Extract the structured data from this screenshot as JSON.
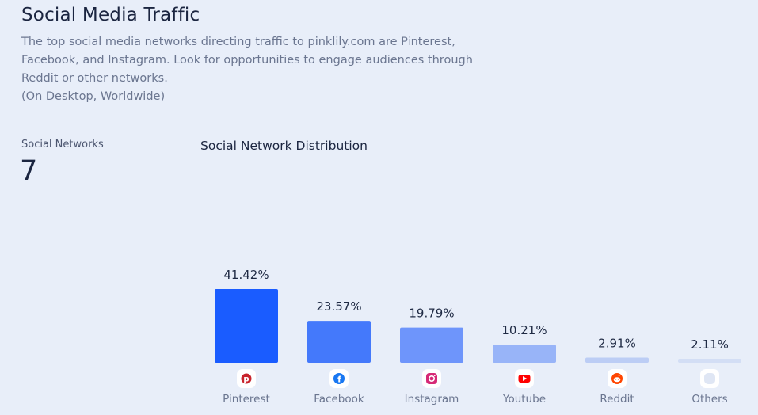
{
  "section": {
    "title": "Social Media Traffic",
    "description_lines": [
      "The top social media networks directing traffic to pinklily.com are Pinterest,",
      "Facebook, and Instagram. Look for opportunities to engage audiences through",
      "Reddit or other networks.",
      "(On Desktop, Worldwide)"
    ]
  },
  "stat": {
    "label": "Social Networks",
    "value": "7"
  },
  "chart_data": {
    "type": "bar",
    "title": "Social Network Distribution",
    "categories": [
      "Pinterest",
      "Facebook",
      "Instagram",
      "Youtube",
      "Reddit",
      "Others"
    ],
    "values": [
      41.42,
      23.57,
      19.79,
      10.21,
      2.91,
      2.11
    ],
    "value_labels": [
      "41.42%",
      "23.57%",
      "19.79%",
      "10.21%",
      "2.91%",
      "2.11%"
    ],
    "unit": "%",
    "ylim": [
      0,
      41.42
    ],
    "grid": false,
    "legend": "none",
    "bar_colors": [
      "#1a5cff",
      "#4479fb",
      "#6e95fb",
      "#98b4f8",
      "#bccdf5",
      "#d3def5"
    ],
    "icons": [
      "pinterest-icon",
      "facebook-icon",
      "instagram-icon",
      "youtube-icon",
      "reddit-icon",
      "others-icon"
    ],
    "icon_colors": [
      "#c8232c",
      "#1877f2",
      "#d62976",
      "#ff0000",
      "#ff4500",
      "#dfe6f4"
    ]
  }
}
